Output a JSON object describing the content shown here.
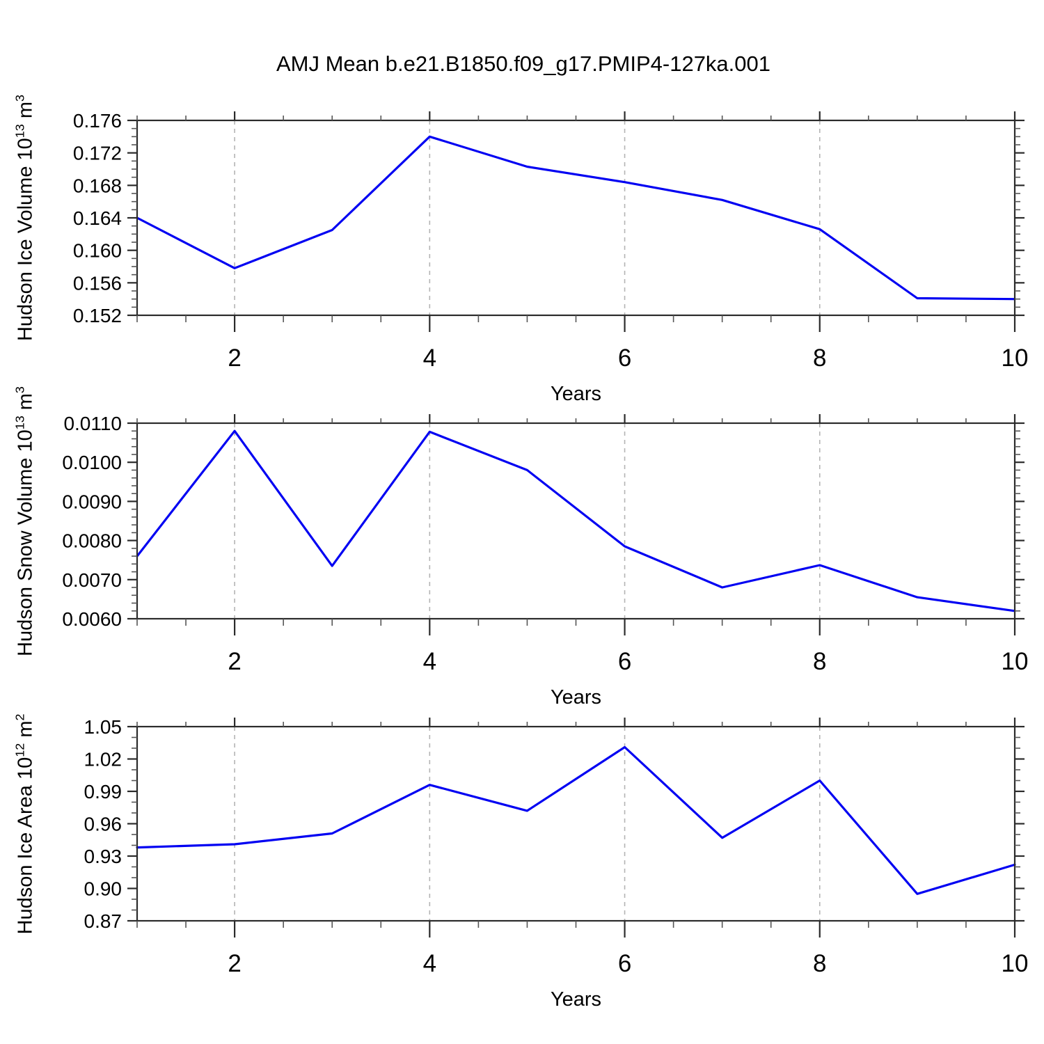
{
  "header": {
    "title": "AMJ Mean b.e21.B1850.f09_g17.PMIP4-127ka.001"
  },
  "colors": {
    "line": "#0202f2",
    "axis": "#2b2b2b",
    "minor_tick": "#555555",
    "grid": "#b4b4b4",
    "text": "#000000"
  },
  "chart_data": [
    {
      "type": "line",
      "ylabel_text": "Hudson Ice Volume 10^13 m^3",
      "ylabel_parts": [
        "Hudson Ice Volume 10",
        "13",
        " m",
        "3"
      ],
      "xlabel": "Years",
      "x": [
        1,
        2,
        3,
        4,
        5,
        6,
        7,
        8,
        9,
        10
      ],
      "values": [
        0.164,
        0.1578,
        0.1625,
        0.174,
        0.1703,
        0.1684,
        0.1662,
        0.1626,
        0.1541,
        0.154
      ],
      "ylim": [
        0.152,
        0.176
      ],
      "yticks": [
        0.176,
        0.172,
        0.168,
        0.164,
        0.16,
        0.156,
        0.152
      ],
      "ytick_labels": [
        "0.176",
        "0.172",
        "0.168",
        "0.164",
        "0.160",
        "0.156",
        "0.152"
      ],
      "yminor_step": 0.001,
      "xlim": [
        1,
        10
      ],
      "xticks": [
        2,
        4,
        6,
        8,
        10
      ],
      "xtick_labels": [
        "2",
        "4",
        "6",
        "8",
        "10"
      ],
      "xminor_step": 0.5,
      "grid_x": [
        2,
        4,
        6,
        8
      ],
      "grid_style": "dashed",
      "legend": "none"
    },
    {
      "type": "line",
      "ylabel_text": "Hudson Snow Volume 10^13 m^3",
      "ylabel_parts": [
        "Hudson Snow Volume 10",
        "13",
        " m",
        "3"
      ],
      "xlabel": "Years",
      "x": [
        1,
        2,
        3,
        4,
        5,
        6,
        7,
        8,
        9,
        10
      ],
      "values": [
        0.0076,
        0.0108,
        0.00735,
        0.01078,
        0.0098,
        0.00785,
        0.0068,
        0.00737,
        0.00655,
        0.0062
      ],
      "ylim": [
        0.006,
        0.011
      ],
      "yticks": [
        0.011,
        0.01,
        0.009,
        0.008,
        0.007,
        0.006
      ],
      "ytick_labels": [
        "0.0110",
        "0.0100",
        "0.0090",
        "0.0080",
        "0.0070",
        "0.0060"
      ],
      "yminor_step": 0.0002,
      "xlim": [
        1,
        10
      ],
      "xticks": [
        2,
        4,
        6,
        8,
        10
      ],
      "xtick_labels": [
        "2",
        "4",
        "6",
        "8",
        "10"
      ],
      "xminor_step": 0.5,
      "grid_x": [
        2,
        4,
        6,
        8
      ],
      "grid_style": "dashed",
      "legend": "none"
    },
    {
      "type": "line",
      "ylabel_text": "Hudson Ice Area 10^12 m^2",
      "ylabel_parts": [
        "Hudson Ice Area 10",
        "12",
        " m",
        "2"
      ],
      "xlabel": "Years",
      "x": [
        1,
        2,
        3,
        4,
        5,
        6,
        7,
        8,
        9,
        10
      ],
      "values": [
        0.938,
        0.941,
        0.951,
        0.996,
        0.972,
        1.031,
        0.947,
        1.0,
        0.895,
        0.922
      ],
      "ylim": [
        0.87,
        1.05
      ],
      "yticks": [
        1.05,
        1.02,
        0.99,
        0.96,
        0.93,
        0.9,
        0.87
      ],
      "ytick_labels": [
        "1.05",
        "1.02",
        "0.99",
        "0.96",
        "0.93",
        "0.90",
        "0.87"
      ],
      "yminor_step": 0.01,
      "xlim": [
        1,
        10
      ],
      "xticks": [
        2,
        4,
        6,
        8,
        10
      ],
      "xtick_labels": [
        "2",
        "4",
        "6",
        "8",
        "10"
      ],
      "xminor_step": 0.5,
      "grid_x": [
        2,
        4,
        6,
        8
      ],
      "grid_style": "dashed",
      "legend": "none"
    }
  ]
}
